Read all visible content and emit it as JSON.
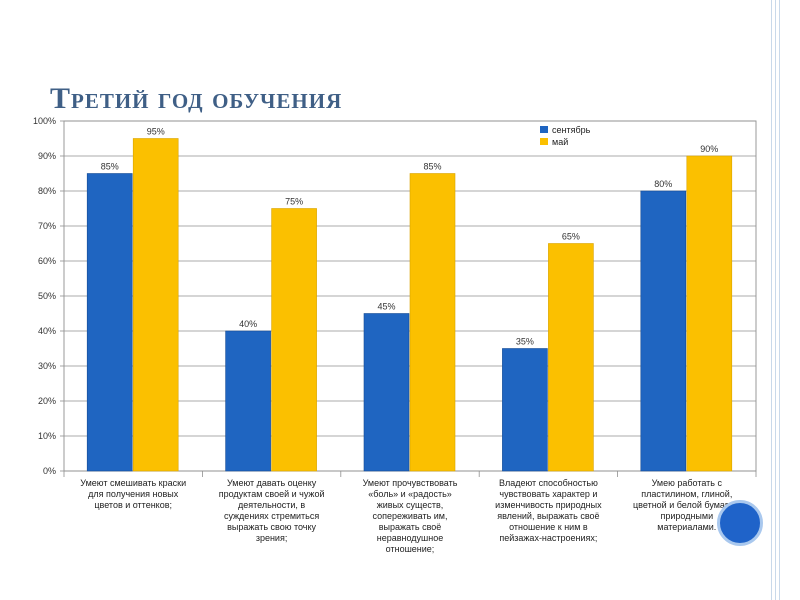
{
  "slide": {
    "title": "Третий год обучения"
  },
  "colors": {
    "series1": "#1f65c1",
    "series2": "#fbc000",
    "accent": "#3f5f86"
  },
  "chart_data": {
    "type": "bar",
    "title": "",
    "xlabel": "",
    "ylabel": "",
    "ylim": [
      0,
      100
    ],
    "y_ticks": [
      "0%",
      "10%",
      "20%",
      "30%",
      "40%",
      "50%",
      "60%",
      "70%",
      "80%",
      "90%",
      "100%"
    ],
    "grid": true,
    "legend_position": "top-right",
    "categories": [
      [
        "Умеют смешивать краски",
        "для получения новых",
        "цветов и оттенков;"
      ],
      [
        "Умеют давать оценку",
        "продуктам своей и чужой",
        "деятельности, в",
        "суждениях стремиться",
        "выражать свою точку",
        "зрения;"
      ],
      [
        "Умеют прочувствовать",
        "«боль» и «радость»",
        "живых существ,",
        "сопереживать им,",
        "выражать своё",
        "неравнодушное",
        "отношение;"
      ],
      [
        "Владеют способностью",
        "чувствовать характер и",
        "изменчивость природных",
        "явлений, выражать своё",
        "отношение к ним в",
        "пейзажах-настроениях;"
      ],
      [
        "Умею работать с",
        "пластилином, глиной,",
        "цветной и белой бумагой,",
        "природными",
        "материалами."
      ]
    ],
    "series": [
      {
        "name": "сентябрь",
        "values": [
          85,
          40,
          45,
          35,
          80
        ],
        "labels": [
          "85%",
          "40%",
          "45%",
          "35%",
          "80%"
        ]
      },
      {
        "name": "май",
        "values": [
          95,
          75,
          85,
          65,
          90
        ],
        "labels": [
          "95%",
          "75%",
          "85%",
          "65%",
          "90%"
        ]
      }
    ]
  }
}
